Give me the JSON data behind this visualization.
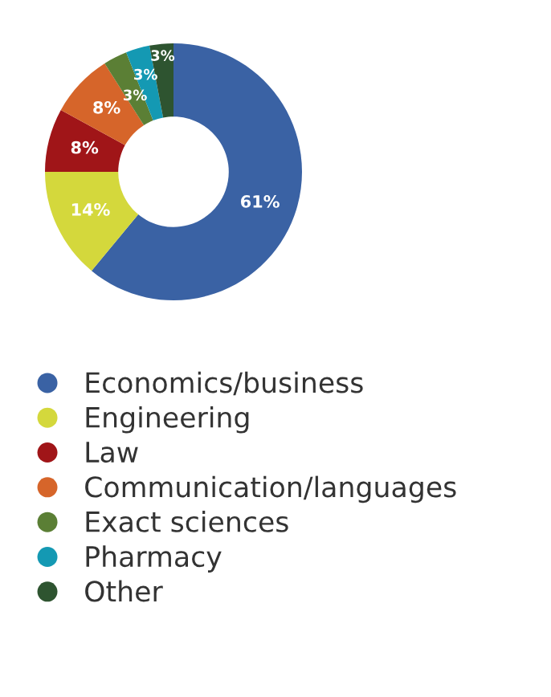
{
  "chart_data": {
    "type": "donut",
    "categories": [
      "Economics/business",
      "Engineering",
      "Law",
      "Communication/languages",
      "Exact sciences",
      "Pharmacy",
      "Other"
    ],
    "values": [
      61,
      14,
      8,
      8,
      3,
      3,
      3
    ],
    "colors": [
      "#3a62a4",
      "#d4d83c",
      "#a01518",
      "#d6652a",
      "#5b7f35",
      "#1499b3",
      "#2e5430"
    ],
    "value_labels": [
      "61%",
      "14%",
      "8%",
      "8%",
      "3%",
      "3%",
      "3%"
    ],
    "legend": "bottom"
  }
}
